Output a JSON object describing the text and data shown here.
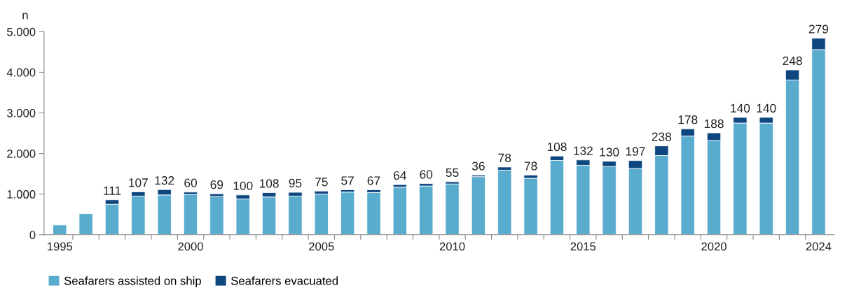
{
  "chart_data": {
    "type": "bar",
    "stacked": true,
    "ylabel": "n",
    "categories": [
      "1995",
      null,
      null,
      null,
      null,
      "2000",
      null,
      null,
      null,
      null,
      "2005",
      null,
      null,
      null,
      null,
      "2010",
      null,
      null,
      null,
      null,
      "2015",
      null,
      null,
      null,
      null,
      "2020",
      null,
      null,
      null,
      "2024"
    ],
    "series": [
      {
        "name": "Seafarers assisted on ship",
        "color": "#5aaccf",
        "values": [
          240,
          520,
          750,
          950,
          980,
          990,
          940,
          880,
          930,
          950,
          1000,
          1050,
          1040,
          1170,
          1200,
          1250,
          1430,
          1590,
          1390,
          1830,
          1710,
          1680,
          1630,
          1950,
          2430,
          2320,
          2750,
          2750,
          3810,
          4560
        ]
      },
      {
        "name": "Seafarers evacuated",
        "color": "#0e4780",
        "values": [
          null,
          null,
          111,
          107,
          132,
          60,
          69,
          100,
          108,
          95,
          75,
          57,
          67,
          64,
          60,
          55,
          36,
          78,
          78,
          108,
          132,
          130,
          197,
          238,
          178,
          188,
          140,
          140,
          248,
          279
        ],
        "value_labels": [
          null,
          null,
          "111",
          "107",
          "132",
          "60",
          "69",
          "100",
          "108",
          "95",
          "75",
          "57",
          "67",
          "64",
          "60",
          "55",
          "36",
          "78",
          "78",
          "108",
          "132",
          "130",
          "197",
          "238",
          "178",
          "188",
          "140",
          "140",
          "248",
          "279"
        ]
      }
    ],
    "ylim": [
      0,
      5000
    ],
    "yticks": [
      {
        "value": 0,
        "label": "0"
      },
      {
        "value": 1000,
        "label": "1.000"
      },
      {
        "value": 2000,
        "label": "2.000"
      },
      {
        "value": 3000,
        "label": "3.000"
      },
      {
        "value": 4000,
        "label": "4.000"
      },
      {
        "value": 5000,
        "label": "5.000"
      }
    ],
    "grid": false,
    "legend": "bottom left"
  }
}
